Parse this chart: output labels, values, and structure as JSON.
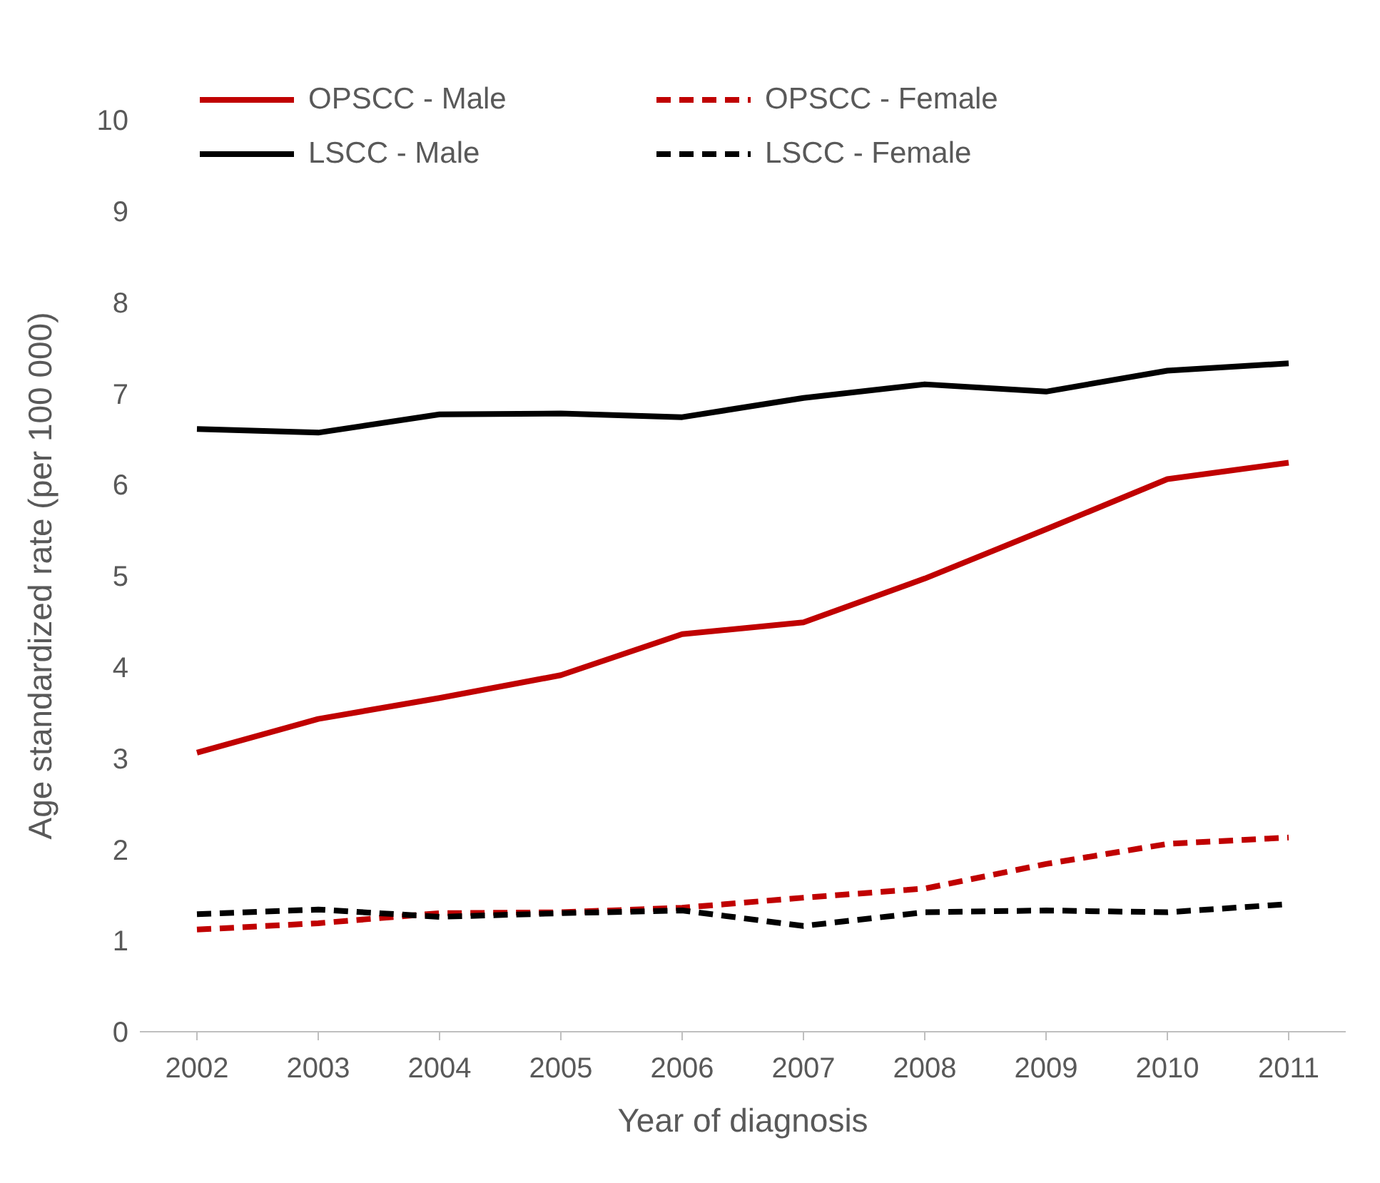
{
  "chart_data": {
    "type": "line",
    "xlabel": "Year of diagnosis",
    "ylabel": "Age standardized rate (per 100 000)",
    "categories": [
      "2002",
      "2003",
      "2004",
      "2005",
      "2006",
      "2007",
      "2008",
      "2009",
      "2010",
      "2011"
    ],
    "ylim": [
      0,
      10
    ],
    "yticks": [
      0,
      1,
      2,
      3,
      4,
      5,
      6,
      7,
      8,
      9,
      10
    ],
    "grid": false,
    "legend": "top",
    "marker": "none",
    "series": [
      {
        "name": "OPSCC - Male",
        "color": "#c00000",
        "line_style": "solid",
        "values": [
          3.06,
          3.43,
          3.66,
          3.91,
          4.36,
          4.49,
          4.97,
          5.51,
          6.06,
          6.24
        ]
      },
      {
        "name": "OPSCC - Female",
        "color": "#c00000",
        "line_style": "dashed",
        "values": [
          1.12,
          1.19,
          1.3,
          1.31,
          1.36,
          1.47,
          1.57,
          1.84,
          2.06,
          2.13
        ]
      },
      {
        "name": "LSCC - Male",
        "color": "#000000",
        "line_style": "solid",
        "values": [
          6.61,
          6.57,
          6.77,
          6.78,
          6.74,
          6.95,
          7.1,
          7.02,
          7.25,
          7.33
        ]
      },
      {
        "name": "LSCC - Female",
        "color": "#000000",
        "line_style": "dashed",
        "values": [
          1.29,
          1.34,
          1.26,
          1.3,
          1.33,
          1.16,
          1.31,
          1.33,
          1.31,
          1.4
        ]
      }
    ]
  }
}
